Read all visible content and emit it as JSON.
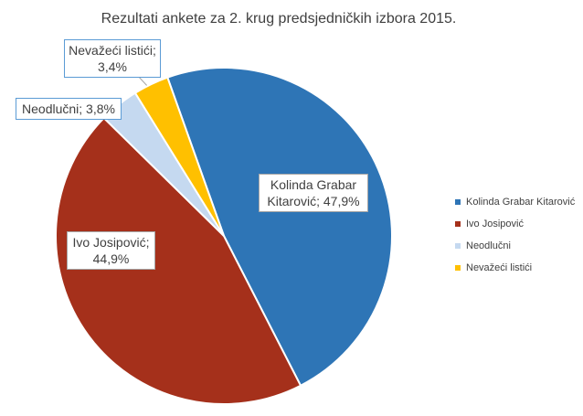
{
  "chart_data": {
    "type": "pie",
    "title": "Rezultati ankete za 2. krug predsjedničkih izbora 2015.",
    "categories": [
      "Kolinda Grabar Kitarović",
      "Ivo Josipović",
      "Neodlučni",
      "Nevažeći listići"
    ],
    "values": [
      47.9,
      44.9,
      3.8,
      3.4
    ],
    "value_labels": [
      "Kolinda Grabar Kitarović; 47,9%",
      "Ivo Josipović; 44,9%",
      "Neodlučni; 3,8%",
      "Nevažeći listići; 3,4%"
    ],
    "colors": [
      "#2e75b6",
      "#a5301b",
      "#c5d9f0",
      "#ffc000"
    ],
    "legend": "right"
  }
}
